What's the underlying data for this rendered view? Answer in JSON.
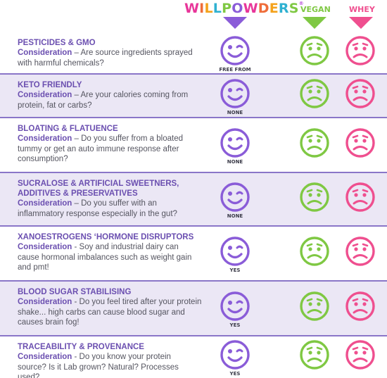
{
  "header": {
    "brand_letters": [
      "W",
      "I",
      "L",
      "L",
      "P",
      "O",
      "W",
      "D",
      "E",
      "R",
      "S"
    ],
    "brand_reg": "®",
    "vegan_label": "VEGAN",
    "whey_label": "WHEY",
    "colors": {
      "purple": "#8a5cd8",
      "vegan": "#7fc843",
      "whey": "#ef4f8f"
    }
  },
  "rows": [
    {
      "title": "PESTICIDES & GMO",
      "label": "Consideration",
      "text": " – Are source ingredients sprayed with harmful chemicals?",
      "badge": "FREE FROM"
    },
    {
      "title": "KETO FRIENDLY",
      "label": "Consideration",
      "text": " – Are your calories coming from protein, fat or carbs?",
      "badge": "NONE"
    },
    {
      "title": "BLOATING & FLATUENCE",
      "label": "Consideration",
      "text": " – Do you suffer from a bloated tummy or get an auto immune response after consumption?",
      "badge": "NONE"
    },
    {
      "title": "SUCRALOSE & ARTIFICIAL SWEETNERS, ADDITIVES & PRESERVATIVES",
      "label": "Consideration",
      "text": " – Do you suffer with an inflammatory response especially in the gut?",
      "badge": "NONE"
    },
    {
      "title": "XANOESTROGENS ‘HORMONE DISRUPTORS",
      "label": "Consideration",
      "text": " - Soy and industrial dairy can cause hormonal imbalances such as weight gain and pmt!",
      "badge": "YES"
    },
    {
      "title": "BLOOD SUGAR STABILISING",
      "label": "Consideration",
      "text": " - Do you feel tired after your protein shake... high carbs can cause blood sugar and causes brain fog!",
      "badge": "YES"
    },
    {
      "title": "TRACEABILITY & PROVENANCE",
      "label": "Consideration",
      "text": " - Do you know your protein source? Is it Lab grown? Natural? Processes used?",
      "badge": "YES"
    }
  ]
}
